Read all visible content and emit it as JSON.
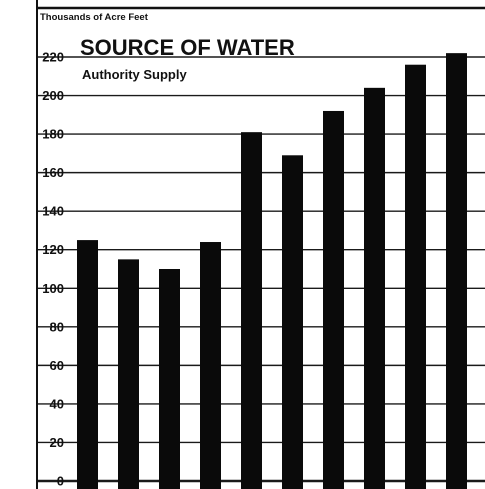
{
  "chart_data": {
    "type": "bar",
    "title": "SOURCE OF WATER",
    "subtitle": "Authority Supply",
    "ylabel": "Thousands of Acre Feet",
    "xlabel": "",
    "ylim": [
      0,
      220
    ],
    "yticks": [
      0,
      20,
      40,
      60,
      80,
      100,
      120,
      140,
      160,
      180,
      200,
      220
    ],
    "ytick_labels": [
      "0",
      "20",
      "40",
      "60",
      "80",
      "100",
      "120",
      "140",
      "160",
      "180",
      "200",
      "220"
    ],
    "values": [
      125,
      115,
      110,
      124,
      181,
      169,
      192,
      204,
      216,
      222
    ],
    "grid": true,
    "colors": {
      "bar": "#0a0a0a",
      "grid": "#1a1a1a",
      "background": "#ffffff"
    }
  }
}
